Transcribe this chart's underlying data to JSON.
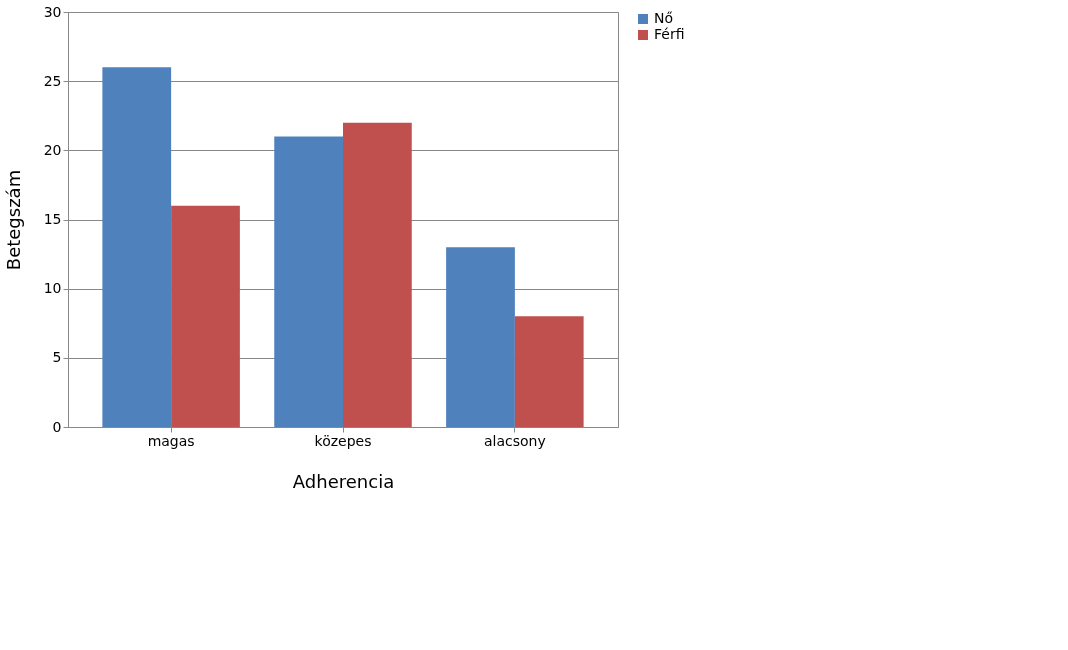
{
  "chart_data": {
    "type": "bar",
    "xlabel": "Adherencia",
    "ylabel": "Betegszám",
    "categories": [
      "magas",
      "közepes",
      "alacsony"
    ],
    "series": [
      {
        "name": "Nő",
        "color": "#4f81bd",
        "values": [
          26,
          21,
          13
        ]
      },
      {
        "name": "Férfi",
        "color": "#c0504d",
        "values": [
          16,
          22,
          8
        ]
      }
    ],
    "ylim": [
      0,
      30
    ],
    "yticks": [
      0,
      5,
      10,
      15,
      20,
      25,
      30
    ],
    "grid": "y",
    "legend": "right"
  }
}
